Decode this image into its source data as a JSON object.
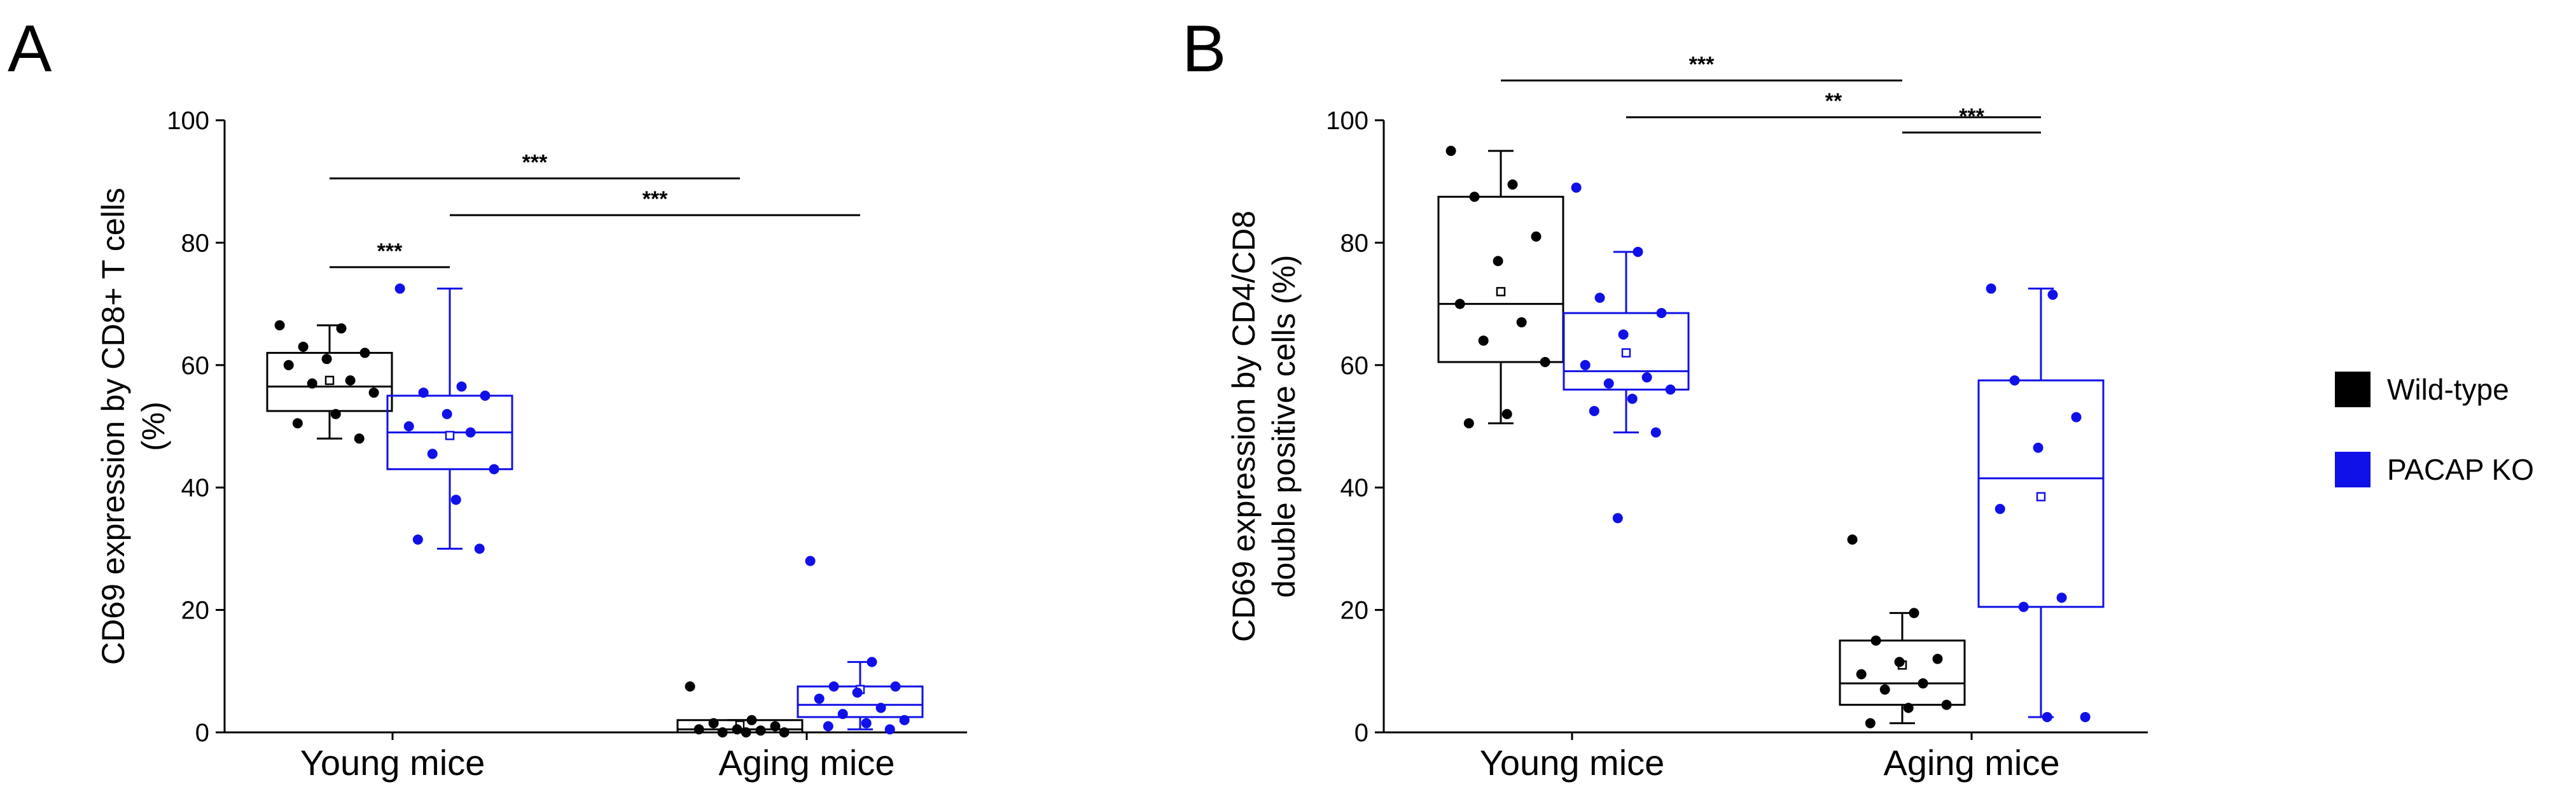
{
  "colors": {
    "wild_type": "#000000",
    "pacap_ko": "#1010e8"
  },
  "legend": [
    {
      "label": "Wild-type",
      "color": "#000000"
    },
    {
      "label": "PACAP KO",
      "color": "#1010e8"
    }
  ],
  "chart_data": [
    {
      "panel": "A",
      "type": "box",
      "ylabel": [
        "CD69 expression by CD8+ T cells",
        "(%)"
      ],
      "ylim": [
        0,
        100
      ],
      "yticks": [
        "0",
        "20",
        "40",
        "60",
        "80",
        "100"
      ],
      "categories": [
        "Young mice",
        "Aging mice"
      ],
      "series": [
        {
          "name": "Wild-type",
          "boxes": [
            {
              "category": "Young mice",
              "whisker_low": 48,
              "q1": 52.5,
              "median": 56.5,
              "q3": 62,
              "whisker_high": 66.5,
              "mean": 57.5,
              "points": [
                66.5,
                66,
                63,
                62,
                61,
                60,
                57.5,
                57,
                55.5,
                52,
                50.5,
                48
              ]
            },
            {
              "category": "Aging mice",
              "whisker_low": 0,
              "q1": 0,
              "median": 0.5,
              "q3": 2,
              "whisker_high": 2,
              "mean": 1.2,
              "points": [
                7.5,
                2,
                1.5,
                1,
                0.5,
                0.5,
                0.3,
                0,
                0,
                0
              ]
            }
          ]
        },
        {
          "name": "PACAP KO",
          "boxes": [
            {
              "category": "Young mice",
              "whisker_low": 30,
              "q1": 43,
              "median": 49,
              "q3": 55,
              "whisker_high": 72.5,
              "mean": 48.5,
              "points": [
                72.5,
                56.5,
                55.5,
                55,
                52,
                50,
                49,
                45.5,
                43,
                38,
                31.5,
                30
              ]
            },
            {
              "category": "Aging mice",
              "whisker_low": 0.5,
              "q1": 2.5,
              "median": 4.5,
              "q3": 7.5,
              "whisker_high": 11.5,
              "mean": 7,
              "points": [
                28,
                11.5,
                7.5,
                7.5,
                6.5,
                5.5,
                4,
                3,
                2,
                1.5,
                1,
                0.5
              ]
            }
          ]
        }
      ],
      "significance": [
        {
          "label": "***",
          "from_box": 0,
          "to_box": 1,
          "y": 76
        },
        {
          "label": "***",
          "from_box": 0,
          "to_box": 2,
          "y": 90.5
        },
        {
          "label": "***",
          "from_box": 1,
          "to_box": 3,
          "y": 84.5
        }
      ]
    },
    {
      "panel": "B",
      "type": "box",
      "ylabel": [
        "CD69 expression by CD4/CD8",
        "double positive cells (%)"
      ],
      "ylim": [
        0,
        100
      ],
      "yticks": [
        "0",
        "20",
        "40",
        "60",
        "80",
        "100"
      ],
      "categories": [
        "Young mice",
        "Aging mice"
      ],
      "series": [
        {
          "name": "Wild-type",
          "boxes": [
            {
              "category": "Young mice",
              "whisker_low": 50.5,
              "q1": 60.5,
              "median": 70,
              "q3": 87.5,
              "whisker_high": 95,
              "mean": 72,
              "points": [
                95,
                89.5,
                87.5,
                81,
                77,
                70,
                67,
                64,
                60.5,
                52,
                50.5
              ]
            },
            {
              "category": "Aging mice",
              "whisker_low": 1.5,
              "q1": 4.5,
              "median": 8,
              "q3": 15,
              "whisker_high": 19.5,
              "mean": 11,
              "points": [
                31.5,
                19.5,
                15,
                12,
                11.5,
                9.5,
                8,
                7,
                4.5,
                4,
                1.5
              ]
            }
          ]
        },
        {
          "name": "PACAP KO",
          "boxes": [
            {
              "category": "Young mice",
              "whisker_low": 49,
              "q1": 56,
              "median": 59,
              "q3": 68.5,
              "whisker_high": 78.5,
              "mean": 62,
              "points": [
                89,
                78.5,
                71,
                68.5,
                65,
                60,
                58,
                57,
                56,
                54.5,
                52.5,
                49,
                35
              ]
            },
            {
              "category": "Aging mice",
              "whisker_low": 2.5,
              "q1": 20.5,
              "median": 41.5,
              "q3": 57.5,
              "whisker_high": 72.5,
              "mean": 38.5,
              "points": [
                72.5,
                71.5,
                57.5,
                51.5,
                46.5,
                36.5,
                22,
                20.5,
                2.5,
                2.5
              ]
            }
          ]
        }
      ],
      "significance": [
        {
          "label": "***",
          "from_box": 0,
          "to_box": 2,
          "y": 106.5
        },
        {
          "label": "**",
          "from_box": 1,
          "to_box": 3,
          "y": 100.5
        },
        {
          "label": "***",
          "from_box": 2,
          "to_box": 3,
          "y": 98
        }
      ]
    }
  ]
}
